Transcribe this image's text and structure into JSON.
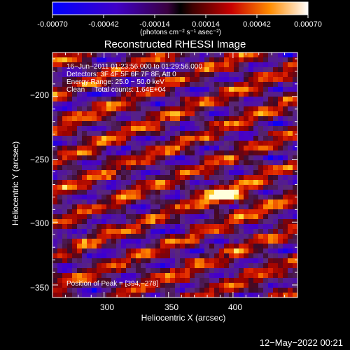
{
  "colorbar": {
    "ticks": [
      "-0.00070",
      "-0.00042",
      "-0.00014",
      "0.00014",
      "0.00042",
      "0.00070"
    ],
    "unit_label": "(photons cm⁻² s⁻¹ asec⁻²)",
    "range": [
      -0.0007,
      0.0007
    ]
  },
  "chart_data": {
    "type": "heatmap",
    "title": "Reconstructed RHESSI Image",
    "xlabel": "Heliocentric X (arcsec)",
    "ylabel": "Heliocentric Y (arcsec)",
    "xlim": [
      260,
      450
    ],
    "ylim": [
      -360,
      -165
    ],
    "x_ticks": [
      300,
      350,
      400
    ],
    "y_ticks": [
      -200,
      -250,
      -300,
      -350
    ],
    "x_tick_labels": [
      "300",
      "350",
      "400"
    ],
    "y_tick_labels": [
      "−200",
      "−250",
      "−300",
      "−350"
    ],
    "annotations": [
      "16−Jun−2011 01:23:56.000 to 01:29:56.000",
      "Detectors: 3F 4F 5F 6F 7F 8F, Att 0",
      "Energy Range: 25.0 − 50.0 keV",
      "Clean     Total counts: 1.64E+04"
    ],
    "peak_label": "Position of Peak = [394,−278]",
    "peak_position": [
      394,
      -278
    ]
  },
  "footer": {
    "date": "12−May−2022 00:21"
  }
}
